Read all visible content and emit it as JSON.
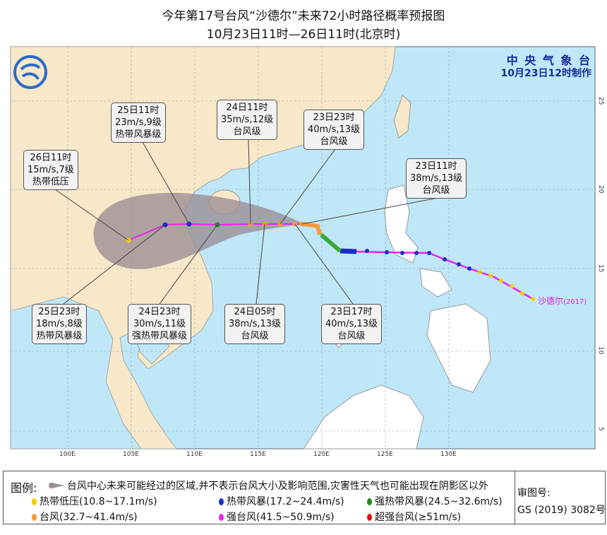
{
  "title": "今年第17号台风“沙德尔”未来72小时路径概率预报图",
  "subtitle": "10月23日11时—26日11时(北京时)",
  "agency": {
    "name": "中 央 气 象 台",
    "made": "10月23日12时制作"
  },
  "typhoon_label": "沙德尔",
  "typhoon_id": "(2017)",
  "lon_ticks": [
    "100E",
    "105E",
    "110E",
    "115E",
    "120E",
    "125E",
    "130E"
  ],
  "lat_ticks": [
    "25",
    "20",
    "15",
    "10",
    "5"
  ],
  "forecast_labels": [
    {
      "time": "25日11时",
      "wind": "23m/s,9级",
      "grade": "热带风暴级"
    },
    {
      "time": "24日11时",
      "wind": "35m/s,12级",
      "grade": "台风级"
    },
    {
      "time": "23日23时",
      "wind": "40m/s,13级",
      "grade": "台风级"
    },
    {
      "time": "26日11时",
      "wind": "15m/s,7级",
      "grade": "热带低压"
    },
    {
      "time": "23日11时",
      "wind": "38m/s,13级",
      "grade": "台风级"
    },
    {
      "time": "25日23时",
      "wind": "18m/s,8级",
      "grade": "热带风暴级"
    },
    {
      "time": "24日23时",
      "wind": "30m/s,11级",
      "grade": "强热带风暴级"
    },
    {
      "time": "24日05时",
      "wind": "38m/s,13级",
      "grade": "台风级"
    },
    {
      "time": "23日17时",
      "wind": "40m/s,13级",
      "grade": "台风级"
    }
  ],
  "legend": {
    "title": "图例:",
    "cone": "台风中心未来可能经过的区域,并不表示台风大小及影响范围,灾害性天气也可能出现在阴影区以外",
    "items": [
      {
        "label": "热带低压(10.8~17.1m/s)",
        "color": "#f5d000"
      },
      {
        "label": "热带风暴(17.2~24.4m/s)",
        "color": "#1a2fc8"
      },
      {
        "label": "强热带风暴(24.5~32.6m/s)",
        "color": "#1f8a1f"
      },
      {
        "label": "台风(32.7~41.4m/s)",
        "color": "#f79a3a"
      },
      {
        "label": "强台风(41.5~50.9m/s)",
        "color": "#ee22ee"
      },
      {
        "label": "超强台风(≥51m/s)",
        "color": "#e01010"
      }
    ],
    "approval_label": "审图号:",
    "approval_no": "GS (2019) 3082号"
  },
  "colors": {
    "sea": "#bfe7f8",
    "land": "#f7e8c9",
    "cone": "#9a8d93",
    "track": "#ee22ee"
  }
}
